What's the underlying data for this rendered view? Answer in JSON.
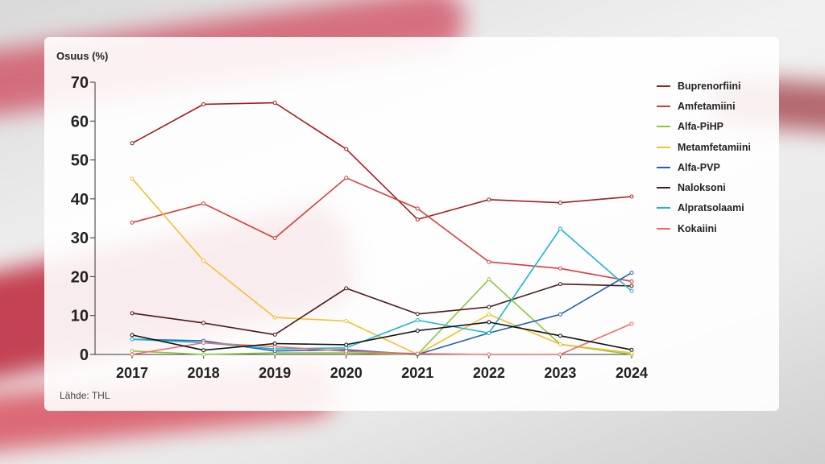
{
  "y_axis_title": "Osuus (%)",
  "source": "Lähde: THL",
  "chart_data": {
    "type": "line",
    "title": "",
    "xlabel": "",
    "ylabel": "Osuus (%)",
    "x": [
      "2017",
      "2018",
      "2019",
      "2020",
      "2021",
      "2022",
      "2023",
      "2024"
    ],
    "yticks": [
      "0",
      "10",
      "20",
      "30",
      "40",
      "50",
      "60",
      "70"
    ],
    "ylim": [
      0,
      70
    ],
    "grid": false,
    "legend_position": "right",
    "series": [
      {
        "name": "Buprenorfiini",
        "color": "#a51d1d",
        "values": [
          54.3,
          64.3,
          64.7,
          52.8,
          34.7,
          39.8,
          39.0,
          40.6
        ]
      },
      {
        "name": "Amfetamiini",
        "color": "#d93b3b",
        "values": [
          33.9,
          38.8,
          29.9,
          45.4,
          37.5,
          23.8,
          22.1,
          18.8
        ]
      },
      {
        "name": "Alfa-PiHP",
        "color": "#8dc63f",
        "values": [
          0.9,
          0.0,
          0.4,
          0.4,
          0.0,
          19.3,
          2.6,
          0.0
        ]
      },
      {
        "name": "Metamfetamiini",
        "color": "#f2c12e",
        "values": [
          45.2,
          24.1,
          9.5,
          8.6,
          0.0,
          10.3,
          2.6,
          0.4
        ]
      },
      {
        "name": "Alfa-PVP",
        "color": "#1f5fbf",
        "values": [
          3.9,
          3.5,
          0.9,
          1.2,
          0.0,
          5.5,
          10.3,
          21.0
        ]
      },
      {
        "name": "Naloksoni",
        "color": "#4a1a1a",
        "values": [
          10.6,
          8.1,
          5.1,
          17.0,
          10.4,
          12.2,
          18.1,
          17.6
        ]
      },
      {
        "name": "Alpratsolaami",
        "color": "#1fb5c9",
        "values": [
          3.9,
          3.0,
          1.4,
          1.7,
          8.8,
          5.5,
          32.3,
          16.3
        ]
      },
      {
        "name": "Kokaiini",
        "color": "#ef6b6b",
        "values": [
          0.0,
          3.0,
          2.0,
          0.8,
          0.2,
          0.0,
          0.0,
          7.9
        ]
      },
      {
        "name": "",
        "color": "#111111",
        "values": [
          5.0,
          1.1,
          2.8,
          2.5,
          6.1,
          8.3,
          4.8,
          1.2
        ]
      }
    ]
  }
}
